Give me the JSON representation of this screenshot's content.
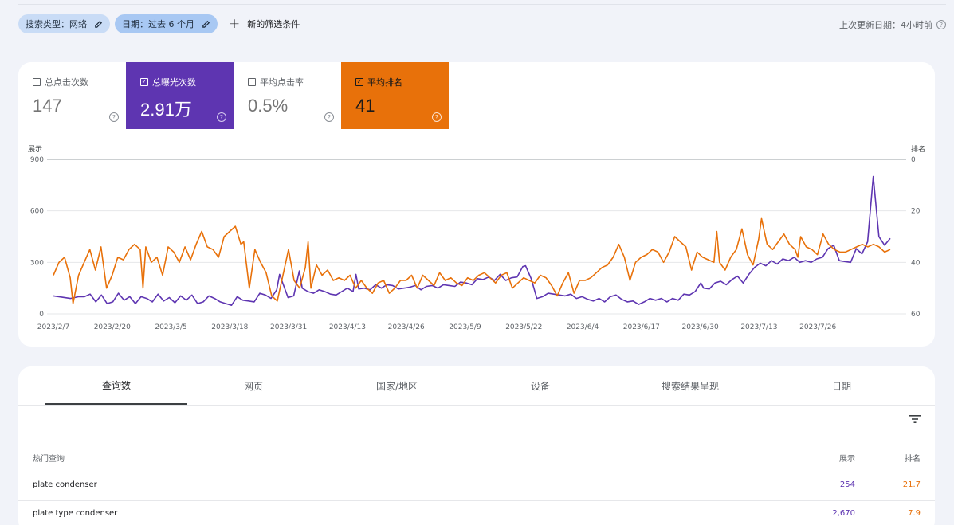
{
  "filters": {
    "chips": [
      {
        "label": "搜索类型：网络"
      },
      {
        "label": "日期：过去 6 个月"
      }
    ],
    "add_label": "新的筛选条件",
    "updated": "上次更新日期：4小时前"
  },
  "metrics": [
    {
      "label": "总点击次数",
      "value": "147",
      "selected": false
    },
    {
      "label": "总曝光次数",
      "value": "2.91万",
      "selected": true,
      "color": "#5e35b1"
    },
    {
      "label": "平均点击率",
      "value": "0.5%",
      "selected": false
    },
    {
      "label": "平均排名",
      "value": "41",
      "selected": true,
      "color": "#e8710a"
    }
  ],
  "chart_data": {
    "type": "line",
    "left_axis_title": "展示",
    "right_axis_title": "排名",
    "left_ticks": [
      "900",
      "600",
      "300",
      "0"
    ],
    "right_ticks": [
      "0",
      "20",
      "40",
      "60"
    ],
    "ylim_left": [
      0,
      900
    ],
    "ylim_right": [
      0,
      60
    ],
    "right_axis_inverted": true,
    "x_labels": [
      "2023/2/7",
      "2023/2/20",
      "2023/3/5",
      "2023/3/18",
      "2023/3/31",
      "2023/4/13",
      "2023/4/26",
      "2023/5/9",
      "2023/5/22",
      "2023/6/4",
      "2023/6/17",
      "2023/6/30",
      "2023/7/13",
      "2023/7/26"
    ],
    "x_start": "2023-02-07",
    "day_count": 186,
    "series": [
      {
        "name": "总曝光次数",
        "color": "#5e35b1",
        "axis": "left",
        "knots": [
          [
            0,
            105
          ],
          [
            6,
            90
          ],
          [
            9,
            100
          ],
          [
            11,
            100
          ],
          [
            13,
            115
          ],
          [
            15,
            70
          ],
          [
            17,
            110
          ],
          [
            19,
            60
          ],
          [
            21,
            70
          ],
          [
            23,
            120
          ],
          [
            25,
            80
          ],
          [
            27,
            100
          ],
          [
            29,
            60
          ],
          [
            31,
            100
          ],
          [
            33,
            90
          ],
          [
            35,
            70
          ],
          [
            37,
            115
          ],
          [
            39,
            75
          ],
          [
            41,
            95
          ],
          [
            43,
            65
          ],
          [
            45,
            105
          ],
          [
            47,
            80
          ],
          [
            49,
            110
          ],
          [
            51,
            60
          ],
          [
            53,
            70
          ],
          [
            55,
            105
          ],
          [
            57,
            90
          ],
          [
            59,
            70
          ],
          [
            61,
            60
          ],
          [
            63,
            50
          ],
          [
            65,
            100
          ],
          [
            67,
            80
          ],
          [
            69,
            75
          ],
          [
            71,
            70
          ],
          [
            73,
            120
          ],
          [
            75,
            110
          ],
          [
            77,
            90
          ],
          [
            79,
            140
          ],
          [
            80,
            230
          ],
          [
            81,
            185
          ],
          [
            83,
            95
          ],
          [
            85,
            105
          ],
          [
            87,
            250
          ],
          [
            88,
            150
          ],
          [
            90,
            130
          ],
          [
            92,
            120
          ],
          [
            94,
            140
          ],
          [
            96,
            130
          ],
          [
            98,
            115
          ],
          [
            100,
            110
          ],
          [
            102,
            130
          ],
          [
            104,
            150
          ],
          [
            106,
            130
          ],
          [
            107,
            230
          ],
          [
            108,
            145
          ],
          [
            110,
            150
          ],
          [
            112,
            140
          ],
          [
            114,
            170
          ],
          [
            116,
            150
          ],
          [
            118,
            170
          ],
          [
            120,
            165
          ],
          [
            122,
            145
          ],
          [
            124,
            150
          ],
          [
            126,
            155
          ],
          [
            128,
            165
          ],
          [
            130,
            140
          ],
          [
            132,
            160
          ],
          [
            134,
            165
          ],
          [
            136,
            150
          ],
          [
            138,
            170
          ],
          [
            140,
            165
          ],
          [
            142,
            160
          ],
          [
            144,
            185
          ],
          [
            146,
            180
          ],
          [
            148,
            170
          ],
          [
            150,
            205
          ],
          [
            152,
            200
          ],
          [
            154,
            215
          ],
          [
            156,
            195
          ],
          [
            158,
            230
          ],
          [
            160,
            195
          ],
          [
            162,
            210
          ],
          [
            164,
            215
          ],
          [
            166,
            275
          ],
          [
            167,
            280
          ],
          [
            169,
            205
          ],
          [
            171,
            90
          ],
          [
            173,
            100
          ],
          [
            175,
            120
          ],
          [
            177,
            115
          ],
          [
            179,
            110
          ],
          [
            181,
            105
          ],
          [
            183,
            115
          ],
          [
            185,
            90
          ],
          [
            187,
            100
          ],
          [
            189,
            85
          ],
          [
            191,
            75
          ],
          [
            193,
            90
          ],
          [
            195,
            70
          ],
          [
            197,
            100
          ],
          [
            199,
            110
          ],
          [
            201,
            85
          ],
          [
            203,
            70
          ],
          [
            205,
            75
          ],
          [
            207,
            55
          ],
          [
            209,
            70
          ],
          [
            211,
            90
          ],
          [
            213,
            80
          ],
          [
            215,
            90
          ],
          [
            217,
            70
          ],
          [
            219,
            90
          ],
          [
            221,
            80
          ],
          [
            223,
            115
          ],
          [
            225,
            110
          ],
          [
            227,
            130
          ],
          [
            229,
            180
          ],
          [
            230,
            150
          ],
          [
            232,
            145
          ],
          [
            234,
            180
          ],
          [
            236,
            190
          ],
          [
            238,
            170
          ],
          [
            240,
            200
          ],
          [
            242,
            220
          ],
          [
            244,
            180
          ],
          [
            246,
            230
          ],
          [
            248,
            270
          ],
          [
            250,
            295
          ],
          [
            252,
            280
          ],
          [
            254,
            310
          ],
          [
            256,
            290
          ],
          [
            258,
            320
          ],
          [
            260,
            310
          ],
          [
            262,
            330
          ],
          [
            264,
            300
          ],
          [
            266,
            310
          ],
          [
            268,
            300
          ],
          [
            270,
            320
          ],
          [
            272,
            330
          ],
          [
            274,
            380
          ],
          [
            276,
            400
          ],
          [
            278,
            310
          ],
          [
            280,
            305
          ],
          [
            282,
            300
          ],
          [
            284,
            380
          ],
          [
            286,
            350
          ],
          [
            288,
            420
          ],
          [
            290,
            800
          ],
          [
            292,
            450
          ],
          [
            294,
            400
          ],
          [
            296,
            440
          ]
        ]
      },
      {
        "name": "平均排名",
        "color": "#e8710a",
        "axis": "right",
        "knots": [
          [
            0,
            45
          ],
          [
            2,
            40
          ],
          [
            4,
            38
          ],
          [
            6,
            46
          ],
          [
            7,
            56
          ],
          [
            9,
            45
          ],
          [
            11,
            40
          ],
          [
            13,
            35
          ],
          [
            15,
            43
          ],
          [
            17,
            34
          ],
          [
            19,
            50
          ],
          [
            21,
            45
          ],
          [
            23,
            38
          ],
          [
            25,
            39
          ],
          [
            27,
            35
          ],
          [
            29,
            33
          ],
          [
            31,
            35
          ],
          [
            32,
            50
          ],
          [
            33,
            34
          ],
          [
            35,
            40
          ],
          [
            37,
            38
          ],
          [
            39,
            45
          ],
          [
            41,
            34
          ],
          [
            43,
            36
          ],
          [
            45,
            40
          ],
          [
            47,
            34
          ],
          [
            49,
            39
          ],
          [
            51,
            33
          ],
          [
            53,
            28
          ],
          [
            55,
            34
          ],
          [
            57,
            35
          ],
          [
            59,
            38
          ],
          [
            61,
            30
          ],
          [
            63,
            28
          ],
          [
            65,
            26
          ],
          [
            67,
            33
          ],
          [
            68,
            32
          ],
          [
            70,
            50
          ],
          [
            72,
            35
          ],
          [
            74,
            40
          ],
          [
            76,
            44
          ],
          [
            78,
            53
          ],
          [
            80,
            55
          ],
          [
            82,
            45
          ],
          [
            84,
            35
          ],
          [
            86,
            47
          ],
          [
            88,
            50
          ],
          [
            90,
            42
          ],
          [
            91,
            32
          ],
          [
            92,
            50
          ],
          [
            94,
            41
          ],
          [
            96,
            45
          ],
          [
            98,
            43
          ],
          [
            100,
            47
          ],
          [
            102,
            46
          ],
          [
            104,
            47
          ],
          [
            106,
            45
          ],
          [
            108,
            50
          ],
          [
            110,
            47
          ],
          [
            112,
            50
          ],
          [
            114,
            52
          ],
          [
            116,
            48
          ],
          [
            118,
            47
          ],
          [
            120,
            52
          ],
          [
            122,
            50
          ],
          [
            124,
            47
          ],
          [
            126,
            47
          ],
          [
            128,
            45
          ],
          [
            130,
            50
          ],
          [
            132,
            45
          ],
          [
            134,
            47
          ],
          [
            136,
            49
          ],
          [
            138,
            44
          ],
          [
            140,
            47
          ],
          [
            142,
            46
          ],
          [
            144,
            48
          ],
          [
            146,
            49
          ],
          [
            148,
            46
          ],
          [
            150,
            47
          ],
          [
            152,
            45
          ],
          [
            154,
            44
          ],
          [
            156,
            46
          ],
          [
            158,
            48
          ],
          [
            160,
            45
          ],
          [
            162,
            44
          ],
          [
            164,
            50
          ],
          [
            166,
            48
          ],
          [
            168,
            46
          ],
          [
            170,
            47
          ],
          [
            172,
            48
          ],
          [
            174,
            45
          ],
          [
            176,
            46
          ],
          [
            178,
            49
          ],
          [
            180,
            53
          ],
          [
            182,
            48
          ],
          [
            184,
            44
          ],
          [
            186,
            52
          ],
          [
            188,
            47
          ],
          [
            190,
            47
          ],
          [
            192,
            46
          ],
          [
            194,
            44
          ],
          [
            196,
            42
          ],
          [
            198,
            41
          ],
          [
            200,
            38
          ],
          [
            202,
            33
          ],
          [
            204,
            38
          ],
          [
            206,
            47
          ],
          [
            208,
            40
          ],
          [
            210,
            38
          ],
          [
            212,
            37
          ],
          [
            214,
            35
          ],
          [
            216,
            36
          ],
          [
            218,
            40
          ],
          [
            220,
            36
          ],
          [
            222,
            30
          ],
          [
            224,
            32
          ],
          [
            226,
            34
          ],
          [
            228,
            43
          ],
          [
            230,
            36
          ],
          [
            232,
            38
          ],
          [
            234,
            39
          ],
          [
            236,
            40
          ],
          [
            237,
            28
          ],
          [
            238,
            40
          ],
          [
            240,
            43
          ],
          [
            242,
            38
          ],
          [
            244,
            35
          ],
          [
            246,
            27
          ],
          [
            248,
            37
          ],
          [
            250,
            41
          ],
          [
            252,
            31
          ],
          [
            253,
            23
          ],
          [
            255,
            33
          ],
          [
            257,
            35
          ],
          [
            259,
            32
          ],
          [
            261,
            29
          ],
          [
            263,
            33
          ],
          [
            265,
            35
          ],
          [
            266,
            38
          ],
          [
            267,
            30
          ],
          [
            269,
            34
          ],
          [
            271,
            35
          ],
          [
            273,
            37
          ],
          [
            275,
            29
          ],
          [
            277,
            33
          ],
          [
            279,
            35
          ],
          [
            281,
            36
          ],
          [
            283,
            36
          ],
          [
            285,
            35
          ],
          [
            287,
            34
          ],
          [
            289,
            33
          ],
          [
            291,
            34
          ],
          [
            293,
            33
          ],
          [
            295,
            34
          ],
          [
            297,
            36
          ],
          [
            299,
            35
          ]
        ]
      }
    ]
  },
  "tabs": [
    "查询数",
    "网页",
    "国家/地区",
    "设备",
    "搜索结果呈现",
    "日期"
  ],
  "table": {
    "headers": {
      "query": "热门查询",
      "impressions": "展示",
      "position": "排名"
    },
    "rows": [
      {
        "query": "plate condenser",
        "impressions": "254",
        "position": "21.7"
      },
      {
        "query": "plate type condenser",
        "impressions": "2,670",
        "position": "7.9"
      }
    ]
  }
}
